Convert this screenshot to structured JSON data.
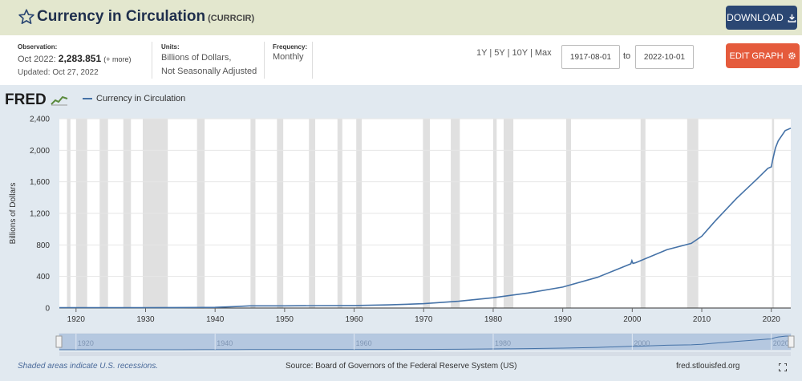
{
  "header": {
    "title": "Currency in Circulation",
    "series_code": "(CURRCIR)",
    "download_label": "DOWNLOAD"
  },
  "info": {
    "observation_label": "Observation:",
    "observation_date": "Oct 2022:",
    "observation_value": "2,283.851",
    "observation_more": "(+ more)",
    "updated": "Updated: Oct 27, 2022",
    "units_label": "Units:",
    "units_line1": "Billions of Dollars,",
    "units_line2": "Not Seasonally Adjusted",
    "frequency_label": "Frequency:",
    "frequency_value": "Monthly",
    "range_1y": "1Y",
    "range_5y": "5Y",
    "range_10y": "10Y",
    "range_max": "Max",
    "range_sep": "|",
    "start_date": "1917-08-01",
    "to_label": "to",
    "end_date": "2022-10-01",
    "edit_label": "EDIT GRAPH"
  },
  "logo": "FRED",
  "legend_label": "Currency in Circulation",
  "footer": {
    "recession_note": "Shaded areas indicate U.S. recessions.",
    "source": "Source: Board of Governors of the Federal Reserve System (US)",
    "site": "fred.stlouisfed.org"
  },
  "chart_data": {
    "type": "line",
    "title": "Currency in Circulation",
    "xlabel": "",
    "ylabel": "Billions of Dollars",
    "xlim": [
      1917.6,
      2022.8
    ],
    "ylim": [
      0,
      2400
    ],
    "y_ticks": [
      0,
      400,
      800,
      1200,
      1600,
      2000,
      2400
    ],
    "y_tick_labels": [
      "0",
      "400",
      "800",
      "1,200",
      "1,600",
      "2,000",
      "2,400"
    ],
    "x_ticks": [
      1920,
      1930,
      1940,
      1950,
      1960,
      1970,
      1980,
      1990,
      2000,
      2010,
      2020
    ],
    "navigator_ticks": [
      1920,
      1940,
      1960,
      1980,
      2000,
      2020
    ],
    "grid": true,
    "line_color": "#4572a7",
    "recession_color": "#e0e0e0",
    "recessions": [
      [
        1918.7,
        1919.2
      ],
      [
        1920.0,
        1921.6
      ],
      [
        1923.4,
        1924.6
      ],
      [
        1926.8,
        1927.9
      ],
      [
        1929.6,
        1933.2
      ],
      [
        1937.4,
        1938.5
      ],
      [
        1945.1,
        1945.8
      ],
      [
        1948.9,
        1949.8
      ],
      [
        1953.5,
        1954.4
      ],
      [
        1957.6,
        1958.3
      ],
      [
        1960.3,
        1961.1
      ],
      [
        1969.9,
        1970.9
      ],
      [
        1973.9,
        1975.2
      ],
      [
        1980.0,
        1980.5
      ],
      [
        1981.5,
        1982.9
      ],
      [
        1990.5,
        1991.2
      ],
      [
        2001.2,
        2001.9
      ],
      [
        2007.9,
        2009.5
      ],
      [
        2020.1,
        2020.4
      ]
    ],
    "series": [
      {
        "name": "Currency in Circulation",
        "x": [
          1917.6,
          1925,
          1930,
          1935,
          1940,
          1943,
          1945,
          1950,
          1955,
          1960,
          1965,
          1970,
          1975,
          1980,
          1985,
          1990,
          1995,
          1999.8,
          1999.95,
          2000.1,
          2000.5,
          2005,
          2008.5,
          2009,
          2010,
          2012,
          2015,
          2018,
          2019.5,
          2020.0,
          2020.2,
          2020.6,
          2021,
          2022,
          2022.8
        ],
        "y": [
          5,
          5,
          5,
          6,
          8,
          18,
          27,
          27,
          31,
          32,
          40,
          55,
          85,
          130,
          190,
          265,
          390,
          560,
          600,
          565,
          575,
          740,
          820,
          850,
          910,
          1110,
          1390,
          1640,
          1770,
          1790,
          1880,
          2030,
          2120,
          2250,
          2280
        ]
      }
    ]
  }
}
